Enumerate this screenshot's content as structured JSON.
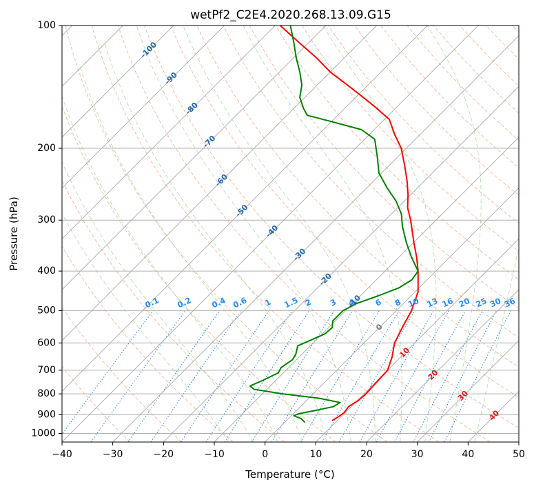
{
  "chart_data": {
    "type": "line",
    "chart_kind": "skew-T log-P diagram",
    "title": "wetPf2_C2E4.2020.268.13.09.G15",
    "xlabel": "Temperature (°C)",
    "ylabel": "Pressure (hPa)",
    "xlim": [
      -40,
      50
    ],
    "ylim": [
      1050,
      100
    ],
    "y_scale": "log",
    "grid": true,
    "x_ticks": [
      -40,
      -30,
      -20,
      -10,
      0,
      10,
      20,
      30,
      40,
      50
    ],
    "x_tick_labels": [
      "−40",
      "−30",
      "−20",
      "−10",
      "0",
      "10",
      "20",
      "30",
      "40",
      "50"
    ],
    "y_ticks": [
      100,
      200,
      300,
      400,
      500,
      600,
      700,
      800,
      900,
      1000
    ],
    "y_tick_labels": [
      "100",
      "200",
      "300",
      "400",
      "500",
      "600",
      "700",
      "800",
      "900",
      "1000"
    ],
    "series": [
      {
        "color": "#ff0000",
        "points": [
          {
            "p": 930,
            "t": 9.0
          },
          {
            "p": 910,
            "t": 9.5
          },
          {
            "p": 890,
            "t": 9.8
          },
          {
            "p": 860,
            "t": 9.5
          },
          {
            "p": 830,
            "t": 10.2
          },
          {
            "p": 800,
            "t": 10.4
          },
          {
            "p": 750,
            "t": 10.2
          },
          {
            "p": 700,
            "t": 10.0
          },
          {
            "p": 650,
            "t": 8.3
          },
          {
            "p": 600,
            "t": 6.0
          },
          {
            "p": 550,
            "t": 4.5
          },
          {
            "p": 500,
            "t": 3.0
          },
          {
            "p": 450,
            "t": 0.6
          },
          {
            "p": 400,
            "t": -3.5
          },
          {
            "p": 370,
            "t": -6.5
          },
          {
            "p": 340,
            "t": -10.0
          },
          {
            "p": 300,
            "t": -15.0
          },
          {
            "p": 280,
            "t": -18.0
          },
          {
            "p": 260,
            "t": -20.5
          },
          {
            "p": 240,
            "t": -23.5
          },
          {
            "p": 220,
            "t": -27.0
          },
          {
            "p": 200,
            "t": -31.0
          },
          {
            "p": 185,
            "t": -35.0
          },
          {
            "p": 170,
            "t": -39.0
          },
          {
            "p": 160,
            "t": -43.5
          },
          {
            "p": 150,
            "t": -48.5
          },
          {
            "p": 140,
            "t": -54.0
          },
          {
            "p": 130,
            "t": -60.0
          },
          {
            "p": 120,
            "t": -65.5
          },
          {
            "p": 110,
            "t": -72.0
          },
          {
            "p": 100,
            "t": -79.0
          }
        ]
      },
      {
        "color": "#008000",
        "points": [
          {
            "p": 940,
            "t": 4.0
          },
          {
            "p": 920,
            "t": 2.5
          },
          {
            "p": 905,
            "t": 0.5
          },
          {
            "p": 895,
            "t": 1.0
          },
          {
            "p": 880,
            "t": 3.5
          },
          {
            "p": 860,
            "t": 6.5
          },
          {
            "p": 840,
            "t": 7.0
          },
          {
            "p": 820,
            "t": 2.0
          },
          {
            "p": 800,
            "t": -6.0
          },
          {
            "p": 780,
            "t": -12.5
          },
          {
            "p": 765,
            "t": -14.0
          },
          {
            "p": 740,
            "t": -12.5
          },
          {
            "p": 710,
            "t": -11.0
          },
          {
            "p": 690,
            "t": -11.5
          },
          {
            "p": 660,
            "t": -10.8
          },
          {
            "p": 640,
            "t": -11.2
          },
          {
            "p": 610,
            "t": -12.5
          },
          {
            "p": 590,
            "t": -11.0
          },
          {
            "p": 570,
            "t": -9.5
          },
          {
            "p": 550,
            "t": -9.3
          },
          {
            "p": 530,
            "t": -10.5
          },
          {
            "p": 500,
            "t": -10.5
          },
          {
            "p": 480,
            "t": -9.2
          },
          {
            "p": 460,
            "t": -6.5
          },
          {
            "p": 440,
            "t": -4.0
          },
          {
            "p": 420,
            "t": -3.0
          },
          {
            "p": 400,
            "t": -3.5
          },
          {
            "p": 370,
            "t": -7.5
          },
          {
            "p": 340,
            "t": -11.5
          },
          {
            "p": 310,
            "t": -15.5
          },
          {
            "p": 290,
            "t": -18.0
          },
          {
            "p": 270,
            "t": -21.5
          },
          {
            "p": 250,
            "t": -26.0
          },
          {
            "p": 230,
            "t": -30.5
          },
          {
            "p": 210,
            "t": -34.0
          },
          {
            "p": 190,
            "t": -38.0
          },
          {
            "p": 180,
            "t": -42.5
          },
          {
            "p": 172,
            "t": -50.0
          },
          {
            "p": 166,
            "t": -56.0
          },
          {
            "p": 160,
            "t": -58.0
          },
          {
            "p": 150,
            "t": -61.0
          },
          {
            "p": 140,
            "t": -63.0
          },
          {
            "p": 130,
            "t": -66.0
          },
          {
            "p": 120,
            "t": -69.5
          },
          {
            "p": 110,
            "t": -73.0
          },
          {
            "p": 100,
            "t": -77.0
          }
        ]
      }
    ],
    "dry_adiabat_labels": [
      "-100",
      "-90",
      "-80",
      "-70",
      "-60",
      "-50",
      "-40",
      "-30",
      "-20",
      "-10",
      "0",
      "10",
      "20",
      "30",
      "40"
    ],
    "mixing_ratio_labels": [
      "0.1",
      "0.2",
      "0.4",
      "0.6",
      "1",
      "1.5",
      "2",
      "3",
      "4",
      "6",
      "8",
      "10",
      "13",
      "16",
      "20",
      "25",
      "30",
      "36"
    ]
  }
}
